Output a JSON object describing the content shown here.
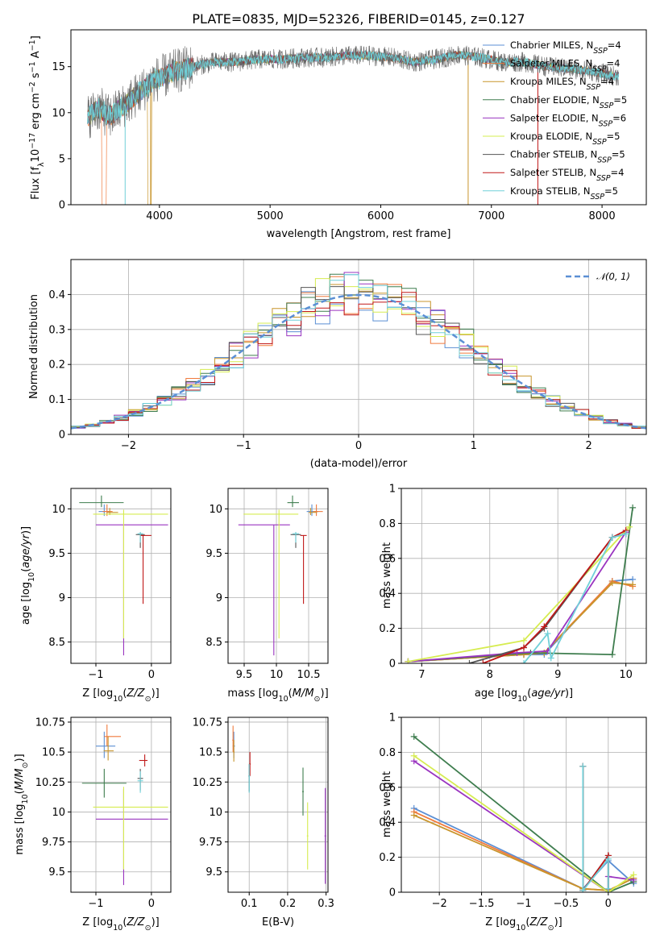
{
  "figure": {
    "title": "PLATE=0835, MJD=52326, FIBERID=0145, z=0.127"
  },
  "series_colors": {
    "Chabrier MILES": "#5b8fd4",
    "Salpeter MILES": "#f07a3c",
    "Kroupa MILES": "#c8952c",
    "Chabrier ELODIE": "#3e7d4e",
    "Salpeter ELODIE": "#9a34c0",
    "Kroupa ELODIE": "#d6ec50",
    "Chabrier STELIB": "#555555",
    "Salpeter STELIB": "#c01818",
    "Kroupa STELIB": "#70d0d8"
  },
  "chart_data": [
    {
      "id": "spectrum",
      "type": "line",
      "title": "PLATE=0835, MJD=52326, FIBERID=0145, z=0.127",
      "xlabel": "wavelength [Angstrom, rest frame]",
      "ylabel": "Flux [f_λ 10^-17 erg cm^-2 s^-1 A^-1]",
      "xlim": [
        3200,
        8400
      ],
      "ylim": [
        0,
        19
      ],
      "xticks": [
        4000,
        5000,
        6000,
        7000,
        8000
      ],
      "yticks": [
        0,
        5,
        10,
        15
      ],
      "grid": false,
      "legend_position": "top-right",
      "legend": [
        {
          "name": "Chabrier MILES",
          "nssp": "4"
        },
        {
          "name": "Salpeter MILES",
          "nssp": "4"
        },
        {
          "name": "Kroupa MILES",
          "nssp": "4"
        },
        {
          "name": "Chabrier ELODIE",
          "nssp": "5"
        },
        {
          "name": "Salpeter ELODIE",
          "nssp": "6"
        },
        {
          "name": "Kroupa ELODIE",
          "nssp": "5"
        },
        {
          "name": "Chabrier STELIB",
          "nssp": "5"
        },
        {
          "name": "Salpeter STELIB",
          "nssp": "4"
        },
        {
          "name": "Kroupa STELIB",
          "nssp": "5"
        }
      ],
      "data_curve": {
        "x": [
          3350,
          3450,
          3550,
          3650,
          3750,
          3850,
          3950,
          4050,
          4150,
          4300,
          4500,
          4700,
          4900,
          5100,
          5300,
          5500,
          5700,
          5900,
          6100,
          6300,
          6500,
          6700,
          6900,
          7100,
          7300,
          7500,
          7700,
          7900,
          8100
        ],
        "y": [
          9.5,
          10.5,
          9.5,
          10.5,
          11.5,
          12.5,
          13.5,
          14.0,
          14.5,
          15.0,
          15.5,
          15.5,
          15.8,
          15.8,
          16.0,
          16.0,
          16.2,
          16.2,
          16.0,
          15.5,
          15.8,
          16.3,
          16.0,
          15.5,
          15.5,
          15.0,
          14.8,
          14.5,
          14.0
        ]
      }
    },
    {
      "id": "residuals",
      "type": "line",
      "xlabel": "(data-model)/error",
      "ylabel": "Normed distribution",
      "xlim": [
        -2.5,
        2.5
      ],
      "ylim": [
        0,
        0.5
      ],
      "xticks": [
        -2,
        -1,
        0,
        1,
        2
      ],
      "yticks": [
        0.0,
        0.1,
        0.2,
        0.3,
        0.4
      ],
      "grid": true,
      "legend_position": "top-right",
      "legend": [
        {
          "name": "N(0,1)"
        }
      ],
      "gaussian": {
        "mean": 0,
        "sigma": 1
      }
    },
    {
      "id": "age-vs-Z",
      "type": "scatter",
      "xlabel": "Z [log10(Z/Z⊙)]",
      "ylabel": "age [log10(age/yr)]",
      "xlim": [
        -1.45,
        0.35
      ],
      "ylim": [
        8.26,
        10.23
      ],
      "xticks": [
        -1,
        0
      ],
      "yticks": [
        8.5,
        9.0,
        9.5,
        10.0
      ],
      "grid": true,
      "points": [
        {
          "series": "Chabrier MILES",
          "x": -0.85,
          "y": 9.97,
          "xerr": [
            0.1,
            0.1
          ],
          "yerr": [
            0.05,
            0.08
          ]
        },
        {
          "series": "Salpeter MILES",
          "x": -0.8,
          "y": 9.97,
          "xerr": [
            0.08,
            0.1
          ],
          "yerr": [
            0.05,
            0.08
          ]
        },
        {
          "series": "Kroupa MILES",
          "x": -0.75,
          "y": 9.96,
          "xerr": [
            0.05,
            0.15
          ],
          "yerr": [
            0.03,
            0.05
          ]
        },
        {
          "series": "Chabrier ELODIE",
          "x": -0.9,
          "y": 10.07,
          "xerr": [
            0.4,
            0.4
          ],
          "yerr": [
            0.05,
            0.08
          ]
        },
        {
          "series": "Salpeter ELODIE",
          "x": -0.5,
          "y": 9.82,
          "xerr": [
            0.5,
            0.8
          ],
          "yerr": [
            1.47,
            0
          ]
        },
        {
          "series": "Kroupa ELODIE",
          "x": -0.5,
          "y": 9.94,
          "xerr": [
            0.55,
            0.8
          ],
          "yerr": [
            1.4,
            0.05
          ]
        },
        {
          "series": "Chabrier STELIB",
          "x": -0.2,
          "y": 9.71,
          "xerr": [
            0.08,
            0.08
          ],
          "yerr": [
            0.15,
            0.02
          ]
        },
        {
          "series": "Salpeter STELIB",
          "x": -0.15,
          "y": 9.7,
          "xerr": [
            0.05,
            0.15
          ],
          "yerr": [
            0.77,
            0
          ]
        },
        {
          "series": "Kroupa STELIB",
          "x": -0.2,
          "y": 9.72,
          "xerr": [
            0.05,
            0.05
          ],
          "yerr": [
            0.1,
            0.02
          ]
        }
      ]
    },
    {
      "id": "age-vs-mass",
      "type": "scatter",
      "xlabel": "mass [log10(M/M⊙)]",
      "ylabel": "",
      "xlim": [
        9.25,
        10.8
      ],
      "ylim": [
        8.26,
        10.23
      ],
      "xticks": [
        9.5,
        10.0,
        10.5
      ],
      "yticks": [
        8.5,
        9.0,
        9.5,
        10.0
      ],
      "grid": true,
      "points": [
        {
          "series": "Chabrier MILES",
          "x": 10.55,
          "y": 9.97,
          "xerr": [
            0.08,
            0.1
          ],
          "yerr": [
            0.05,
            0.08
          ]
        },
        {
          "series": "Salpeter MILES",
          "x": 10.62,
          "y": 9.97,
          "xerr": [
            0.05,
            0.1
          ],
          "yerr": [
            0.05,
            0.08
          ]
        },
        {
          "series": "Kroupa MILES",
          "x": 10.53,
          "y": 9.96,
          "xerr": [
            0.03,
            0.1
          ],
          "yerr": [
            0.03,
            0.05
          ]
        },
        {
          "series": "Chabrier ELODIE",
          "x": 10.25,
          "y": 10.07,
          "xerr": [
            0.08,
            0.1
          ],
          "yerr": [
            0.05,
            0.08
          ]
        },
        {
          "series": "Salpeter ELODIE",
          "x": 9.96,
          "y": 9.82,
          "xerr": [
            0.55,
            0.25
          ],
          "yerr": [
            1.47,
            0
          ]
        },
        {
          "series": "Kroupa ELODIE",
          "x": 10.04,
          "y": 9.94,
          "xerr": [
            0.55,
            0.3
          ],
          "yerr": [
            1.4,
            0.05
          ]
        },
        {
          "series": "Chabrier STELIB",
          "x": 10.3,
          "y": 9.71,
          "xerr": [
            0.08,
            0.08
          ],
          "yerr": [
            0.15,
            0.02
          ]
        },
        {
          "series": "Salpeter STELIB",
          "x": 10.42,
          "y": 9.7,
          "xerr": [
            0.05,
            0.05
          ],
          "yerr": [
            0.77,
            0
          ]
        },
        {
          "series": "Kroupa STELIB",
          "x": 10.3,
          "y": 9.72,
          "xerr": [
            0.05,
            0.05
          ],
          "yerr": [
            0.1,
            0.02
          ]
        }
      ]
    },
    {
      "id": "weight-vs-age",
      "type": "line",
      "xlabel": "age [log10(age/yr)]",
      "ylabel": "mass weight",
      "xlim": [
        6.7,
        10.3
      ],
      "ylim": [
        0,
        1.0
      ],
      "xticks": [
        7,
        8,
        9,
        10
      ],
      "yticks": [
        0.0,
        0.2,
        0.4,
        0.6,
        0.8,
        1.0
      ],
      "grid": true,
      "series": [
        {
          "name": "Chabrier MILES",
          "x": [
            6.8,
            8.5,
            8.8,
            9.8,
            10.1
          ],
          "y": [
            0.01,
            0.05,
            0.05,
            0.47,
            0.48
          ]
        },
        {
          "name": "Salpeter MILES",
          "x": [
            6.8,
            8.5,
            8.8,
            9.8,
            10.1
          ],
          "y": [
            0.01,
            0.05,
            0.06,
            0.47,
            0.44
          ]
        },
        {
          "name": "Kroupa MILES",
          "x": [
            6.8,
            8.5,
            8.8,
            9.8,
            10.1
          ],
          "y": [
            0.01,
            0.05,
            0.06,
            0.46,
            0.45
          ]
        },
        {
          "name": "Chabrier ELODIE",
          "x": [
            6.8,
            8.6,
            9.8,
            10.1
          ],
          "y": [
            0.01,
            0.06,
            0.05,
            0.89
          ]
        },
        {
          "name": "Salpeter ELODIE",
          "x": [
            6.8,
            8.4,
            8.85,
            10.0
          ],
          "y": [
            0.01,
            0.06,
            0.07,
            0.75
          ]
        },
        {
          "name": "Kroupa ELODIE",
          "x": [
            6.8,
            8.5,
            10.05
          ],
          "y": [
            0.01,
            0.13,
            0.78
          ]
        },
        {
          "name": "Chabrier STELIB",
          "x": [
            7.7,
            8.5,
            8.8,
            9.8,
            10.0
          ],
          "y": [
            0.0,
            0.09,
            0.2,
            0.72,
            0.74
          ]
        },
        {
          "name": "Salpeter STELIB",
          "x": [
            7.9,
            8.5,
            8.8,
            9.8,
            10.0
          ],
          "y": [
            0.0,
            0.09,
            0.21,
            0.72,
            0.76
          ]
        },
        {
          "name": "Kroupa STELIB",
          "x": [
            8.5,
            8.85,
            8.9,
            9.8,
            10.0
          ],
          "y": [
            0.0,
            0.17,
            0.03,
            0.72,
            0.74
          ]
        }
      ]
    },
    {
      "id": "mass-vs-Z",
      "type": "scatter",
      "xlabel": "Z [log10(Z/Z⊙)]",
      "ylabel": "mass [log10(M/M⊙)]",
      "xlim": [
        -1.45,
        0.35
      ],
      "ylim": [
        9.33,
        10.79
      ],
      "xticks": [
        -1,
        0
      ],
      "yticks": [
        9.5,
        9.75,
        10.0,
        10.25,
        10.5,
        10.75
      ],
      "grid": true,
      "points": [
        {
          "series": "Chabrier MILES",
          "x": -0.85,
          "y": 10.55,
          "xerr": [
            0.15,
            0.2
          ],
          "yerr": [
            0.1,
            0.12
          ]
        },
        {
          "series": "Salpeter MILES",
          "x": -0.8,
          "y": 10.63,
          "xerr": [
            0.05,
            0.25
          ],
          "yerr": [
            0.08,
            0.1
          ]
        },
        {
          "series": "Kroupa MILES",
          "x": -0.78,
          "y": 10.51,
          "xerr": [
            0.08,
            0.1
          ],
          "yerr": [
            0.08,
            0.12
          ]
        },
        {
          "series": "Chabrier ELODIE",
          "x": -0.85,
          "y": 10.24,
          "xerr": [
            0.4,
            0.4
          ],
          "yerr": [
            0.12,
            0.12
          ]
        },
        {
          "series": "Salpeter ELODIE",
          "x": -0.5,
          "y": 9.94,
          "xerr": [
            0.5,
            0.8
          ],
          "yerr": [
            0.55,
            0.25
          ]
        },
        {
          "series": "Kroupa ELODIE",
          "x": -0.5,
          "y": 10.04,
          "xerr": [
            0.55,
            0.8
          ],
          "yerr": [
            0.52,
            0.17
          ]
        },
        {
          "series": "Chabrier STELIB",
          "x": -0.2,
          "y": 10.28,
          "xerr": [
            0.05,
            0.05
          ],
          "yerr": [
            0.1,
            0.08
          ]
        },
        {
          "series": "Salpeter STELIB",
          "x": -0.12,
          "y": 10.43,
          "xerr": [
            0.1,
            0.05
          ],
          "yerr": [
            0.05,
            0.05
          ]
        },
        {
          "series": "Kroupa STELIB",
          "x": -0.2,
          "y": 10.26,
          "xerr": [
            0.05,
            0.05
          ],
          "yerr": [
            0.1,
            0.08
          ]
        }
      ]
    },
    {
      "id": "mass-vs-ebv",
      "type": "scatter",
      "xlabel": "E(B-V)",
      "ylabel": "",
      "xlim": [
        0.045,
        0.305
      ],
      "ylim": [
        9.33,
        10.79
      ],
      "xticks": [
        0.1,
        0.2,
        0.3
      ],
      "yticks": [
        9.5,
        9.75,
        10.0,
        10.25,
        10.5,
        10.75
      ],
      "grid": true,
      "points": [
        {
          "series": "Chabrier MILES",
          "x": 0.06,
          "y": 10.55,
          "xerr": [
            0.003,
            0.003
          ],
          "yerr": [
            0.1,
            0.12
          ]
        },
        {
          "series": "Salpeter MILES",
          "x": 0.058,
          "y": 10.6,
          "xerr": [
            0.002,
            0.002
          ],
          "yerr": [
            0.1,
            0.12
          ]
        },
        {
          "series": "Kroupa MILES",
          "x": 0.06,
          "y": 10.5,
          "xerr": [
            0.002,
            0.002
          ],
          "yerr": [
            0.08,
            0.1
          ]
        },
        {
          "series": "Chabrier ELODIE",
          "x": 0.24,
          "y": 10.17,
          "xerr": [
            0.002,
            0.002
          ],
          "yerr": [
            0.2,
            0.2
          ]
        },
        {
          "series": "Salpeter ELODIE",
          "x": 0.298,
          "y": 9.8,
          "xerr": [
            0.002,
            0.002
          ],
          "yerr": [
            0.4,
            0.4
          ]
        },
        {
          "series": "Kroupa ELODIE",
          "x": 0.252,
          "y": 9.8,
          "xerr": [
            0.002,
            0.002
          ],
          "yerr": [
            0.28,
            0.28
          ]
        },
        {
          "series": "Chabrier STELIB",
          "x": 0.1,
          "y": 10.3,
          "xerr": [
            0.002,
            0.002
          ],
          "yerr": [
            0.13,
            0.1
          ]
        },
        {
          "series": "Salpeter STELIB",
          "x": 0.102,
          "y": 10.4,
          "xerr": [
            0.002,
            0.002
          ],
          "yerr": [
            0.1,
            0.1
          ]
        },
        {
          "series": "Kroupa STELIB",
          "x": 0.1,
          "y": 10.3,
          "xerr": [
            0.002,
            0.002
          ],
          "yerr": [
            0.14,
            0.1
          ]
        }
      ]
    },
    {
      "id": "weight-vs-Z",
      "type": "line",
      "xlabel": "Z [log10(Z/Z⊙)]",
      "ylabel": "mass weight",
      "xlim": [
        -2.45,
        0.45
      ],
      "ylim": [
        0,
        1.0
      ],
      "xticks": [
        -2.0,
        -1.5,
        -1.0,
        -0.5,
        0.0
      ],
      "yticks": [
        0.0,
        0.2,
        0.4,
        0.6,
        0.8,
        1.0
      ],
      "grid": true,
      "series": [
        {
          "name": "Chabrier MILES",
          "x": [
            -2.3,
            -0.3,
            0.0,
            0.3
          ],
          "y": [
            0.48,
            0.02,
            0.18,
            0.05
          ]
        },
        {
          "name": "Salpeter MILES",
          "x": [
            -2.3,
            -0.3,
            0.0,
            0.3
          ],
          "y": [
            0.46,
            0.02,
            0.01,
            0.08
          ]
        },
        {
          "name": "Kroupa MILES",
          "x": [
            -2.3,
            -0.3,
            0.0,
            0.3
          ],
          "y": [
            0.44,
            0.02,
            0.01,
            0.08
          ]
        },
        {
          "name": "Chabrier ELODIE",
          "x": [
            -2.3,
            0.0,
            0.3
          ],
          "y": [
            0.89,
            0.0,
            0.06
          ]
        },
        {
          "name": "Salpeter ELODIE",
          "x": [
            -2.3,
            0.0,
            0.0,
            0.3
          ],
          "y": [
            0.75,
            0.0,
            0.09,
            0.07
          ]
        },
        {
          "name": "Kroupa ELODIE",
          "x": [
            -2.3,
            0.0,
            0.3
          ],
          "y": [
            0.78,
            0.0,
            0.1
          ]
        },
        {
          "name": "Chabrier STELIB",
          "x": [
            -0.3,
            -0.3,
            0.0,
            0.0
          ],
          "y": [
            0.72,
            0.01,
            0.21,
            0.02
          ]
        },
        {
          "name": "Salpeter STELIB",
          "x": [
            -0.3,
            -0.3,
            0.0,
            0.0
          ],
          "y": [
            0.72,
            0.01,
            0.21,
            0.02
          ]
        },
        {
          "name": "Kroupa STELIB",
          "x": [
            -0.3,
            -0.3,
            0.0,
            0.0
          ],
          "y": [
            0.72,
            0.01,
            0.19,
            0.02
          ]
        }
      ]
    }
  ]
}
